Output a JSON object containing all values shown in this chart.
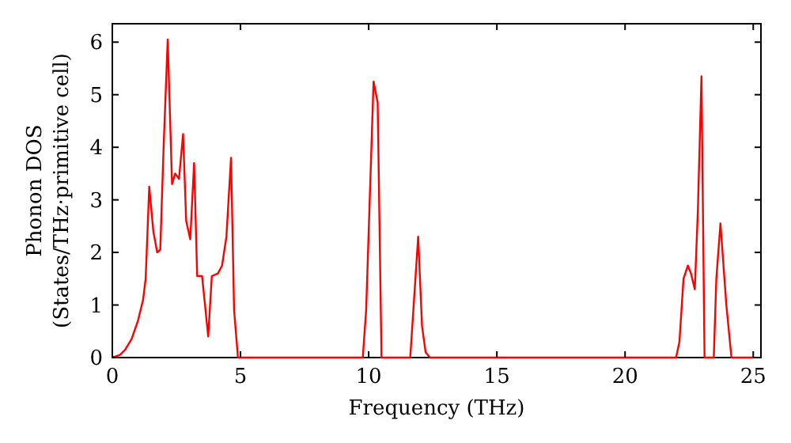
{
  "chart_data": {
    "type": "line",
    "xlabel": "Frequency (THz)",
    "ylabel": "Phonon DOS\n(States/THz·primitive cell)",
    "xlim": [
      0,
      25.3
    ],
    "ylim": [
      0,
      6.35
    ],
    "xticks": [
      0,
      5,
      10,
      15,
      20,
      25
    ],
    "yticks": [
      0,
      1,
      2,
      3,
      4,
      5,
      6
    ],
    "grid": false,
    "marker": "none",
    "line_style": "solid",
    "series": [
      {
        "color": "#ff0000",
        "x": [
          0,
          0.3,
          0.5,
          0.75,
          1.0,
          1.2,
          1.3,
          1.44,
          1.6,
          1.75,
          1.87,
          2.0,
          2.16,
          2.33,
          2.45,
          2.6,
          2.76,
          2.88,
          3.04,
          3.19,
          3.31,
          3.5,
          3.74,
          3.88,
          4.12,
          4.28,
          4.45,
          4.63,
          4.75,
          4.9,
          9.77,
          9.9,
          10.19,
          10.35,
          10.5,
          11.62,
          11.93,
          12.08,
          12.22,
          12.39,
          21.99,
          22.12,
          22.28,
          22.45,
          22.57,
          22.72,
          22.84,
          22.98,
          23.1,
          23.46,
          23.56,
          23.72,
          23.95,
          24.15,
          25
        ],
        "values": [
          0,
          0.05,
          0.15,
          0.35,
          0.7,
          1.1,
          1.5,
          3.25,
          2.4,
          2.0,
          2.05,
          4.0,
          6.05,
          3.3,
          3.5,
          3.4,
          4.25,
          2.6,
          2.25,
          3.7,
          1.55,
          1.55,
          0.4,
          1.55,
          1.6,
          1.75,
          2.3,
          3.8,
          0.9,
          0,
          0,
          0.9,
          5.25,
          4.85,
          0,
          0,
          2.3,
          0.6,
          0.1,
          0,
          0,
          0.3,
          1.5,
          1.75,
          1.6,
          1.3,
          2.8,
          5.35,
          0,
          0,
          1.5,
          2.55,
          1.0,
          0,
          0
        ]
      }
    ]
  }
}
